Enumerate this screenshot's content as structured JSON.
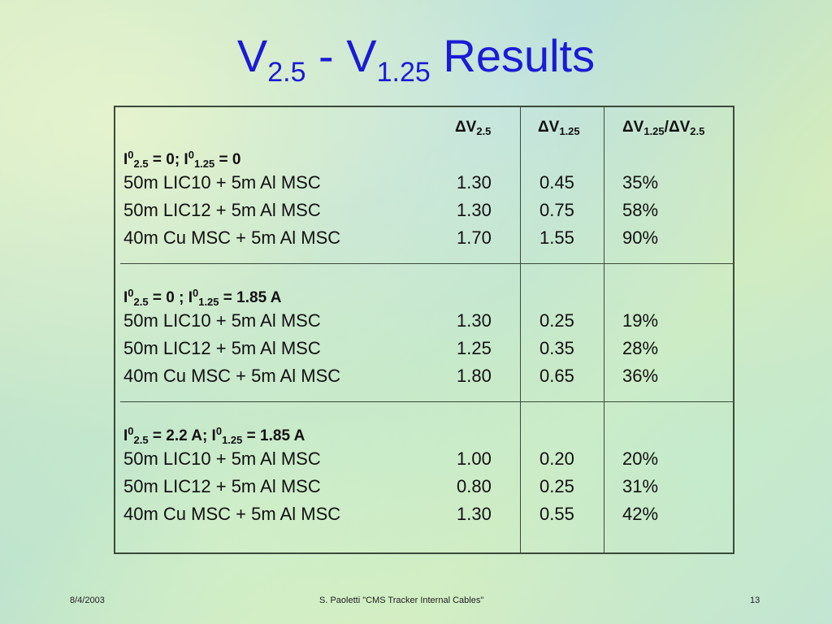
{
  "title": {
    "main": "V",
    "sub1": "2.5",
    "mid": " - V",
    "sub2": "1.25",
    "end": " Results"
  },
  "headers": {
    "dv25": {
      "sym": "ΔV",
      "sub": "2.5"
    },
    "dv125": {
      "sym": "ΔV",
      "sub": "1.25"
    },
    "ratio": {
      "sym1": "ΔV",
      "sub1": "1.25",
      "slash": "/",
      "sym2": "ΔV",
      "sub2": "2.5"
    }
  },
  "groups": [
    {
      "label": {
        "a": "I",
        "a_sup": "0",
        "a_sub": "2.5",
        "b": " = 0; I",
        "b_sup": "0",
        "b_sub": "1.25",
        "c": " = 0"
      },
      "rows": [
        {
          "name": "50m LIC10 + 5m Al MSC",
          "dv25": "1.30",
          "dv125": "0.45",
          "ratio": "35%"
        },
        {
          "name": "50m LIC12 + 5m Al MSC",
          "dv25": "1.30",
          "dv125": "0.75",
          "ratio": "58%"
        },
        {
          "name": "40m Cu MSC + 5m Al MSC",
          "dv25": "1.70",
          "dv125": "1.55",
          "ratio": "90%"
        }
      ]
    },
    {
      "label": {
        "a": "I",
        "a_sup": "0",
        "a_sub": "2.5",
        "b": " = 0 ; I",
        "b_sup": "0",
        "b_sub": "1.25",
        "c": " = 1.85 A"
      },
      "rows": [
        {
          "name": "50m LIC10 + 5m Al MSC",
          "dv25": "1.30",
          "dv125": "0.25",
          "ratio": "19%"
        },
        {
          "name": "50m LIC12 + 5m Al MSC",
          "dv25": "1.25",
          "dv125": "0.35",
          "ratio": "28%"
        },
        {
          "name": "40m Cu MSC + 5m Al MSC",
          "dv25": "1.80",
          "dv125": "0.65",
          "ratio": "36%"
        }
      ]
    },
    {
      "label": {
        "a": "I",
        "a_sup": "0",
        "a_sub": "2.5",
        "b": " = 2.2 A; I",
        "b_sup": "0",
        "b_sub": "1.25",
        "c": " = 1.85 A"
      },
      "rows": [
        {
          "name": "50m LIC10 + 5m Al MSC",
          "dv25": "1.00",
          "dv125": "0.20",
          "ratio": "20%"
        },
        {
          "name": "50m LIC12 + 5m Al MSC",
          "dv25": "0.80",
          "dv125": "0.25",
          "ratio": "31%"
        },
        {
          "name": "40m Cu MSC + 5m Al MSC",
          "dv25": "1.30",
          "dv125": "0.55",
          "ratio": "42%"
        }
      ]
    }
  ],
  "footer": {
    "date": "8/4/2003",
    "center": "S. Paoletti  \"CMS Tracker Internal Cables\"",
    "page": "13"
  },
  "colors": {
    "title": "#1b1bd6",
    "text": "#111111",
    "lines": "#3a4a3a"
  }
}
